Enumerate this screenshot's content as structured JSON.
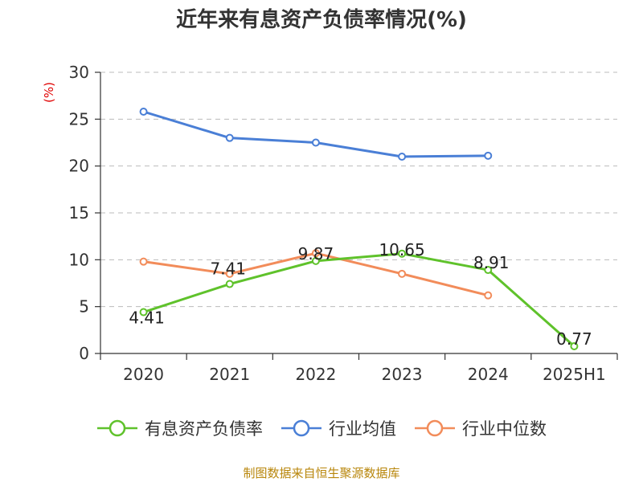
{
  "title": "近年来有息资产负债率情况(%)",
  "source": "制图数据来自恒生聚源数据库",
  "chart_data": {
    "type": "line",
    "title": "近年来有息资产负债率情况(%)",
    "ylabel": "(%)",
    "xlabel": "",
    "categories": [
      "2020",
      "2021",
      "2022",
      "2023",
      "2024",
      "2025H1"
    ],
    "ylim": [
      0,
      30
    ],
    "yticks": [
      0,
      5,
      10,
      15,
      20,
      25,
      30
    ],
    "grid": "horizontal dashed",
    "legend_position": "bottom",
    "series": [
      {
        "name": "有息资产负债率",
        "color": "#5fc22b",
        "values": [
          4.41,
          7.41,
          9.87,
          10.65,
          8.91,
          0.77
        ],
        "labels": [
          "4.41",
          "7.41",
          "9.87",
          "10.65",
          "8.91",
          "0.77"
        ]
      },
      {
        "name": "行业均值",
        "color": "#4a7fd6",
        "values": [
          25.8,
          23.0,
          22.5,
          21.0,
          21.1,
          null
        ]
      },
      {
        "name": "行业中位数",
        "color": "#f28c5a",
        "values": [
          9.8,
          8.5,
          10.7,
          8.5,
          6.2,
          null
        ]
      }
    ]
  }
}
